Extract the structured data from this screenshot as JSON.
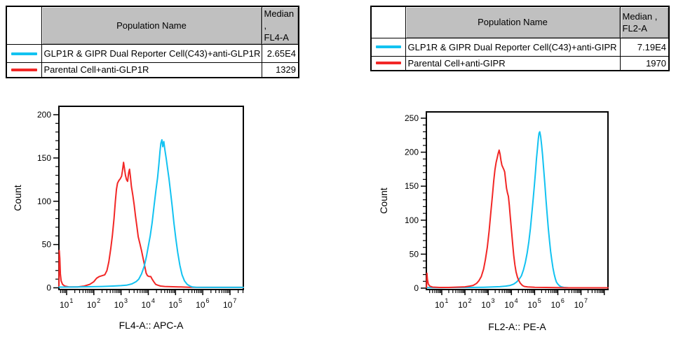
{
  "colors": {
    "cyan": "#12C2F1",
    "red": "#F22726",
    "table_header_bg": "#C0C0C0",
    "axis": "#000000",
    "background": "#FFFFFF"
  },
  "tables": [
    {
      "header": {
        "population": "Population Name",
        "median_line1": "Median ,",
        "median_line2": "FL4-A"
      },
      "rows": [
        {
          "swatch_color": "cyan",
          "name": "GLP1R & GIPR Dual Reporter Cell(C43)+anti-GLP1R",
          "median": "2.65E4"
        },
        {
          "swatch_color": "red",
          "name": "Parental Cell+anti-GLP1R",
          "median": "1329"
        }
      ]
    },
    {
      "header": {
        "population": "Population Name",
        "median_line1": "Median ,",
        "median_line2": "FL2-A"
      },
      "rows": [
        {
          "swatch_color": "cyan",
          "name": "GLP1R & GIPR Dual Reporter Cell(C43)+anti-GIPR",
          "median": "7.19E4"
        },
        {
          "swatch_color": "red",
          "name": "Parental Cell+anti-GIPR",
          "median": "1970"
        }
      ]
    }
  ],
  "chart_data": [
    {
      "type": "line",
      "subtype": "flow-cytometry-histogram",
      "title": "",
      "xlabel": "FL4-A:: APC-A",
      "ylabel": "Count",
      "x_scale": "log10",
      "x_tick_exponents": [
        1,
        2,
        3,
        4,
        5,
        6,
        7
      ],
      "xlim_log10": [
        0.72,
        7.49
      ],
      "ylim": [
        0,
        200
      ],
      "y_ticks": [
        0,
        50,
        100,
        150,
        200
      ],
      "y_minor_step": 10,
      "grid": false,
      "legend_position": "none",
      "series": [
        {
          "name": "GLP1R & GIPR Dual Reporter Cell(C43)+anti-GLP1R",
          "color_key": "cyan",
          "median": "2.65E4",
          "peak": {
            "x_log10": 4.5,
            "count": 171
          },
          "points": [
            [
              0.72,
              0.8
            ],
            [
              1.2,
              0.9
            ],
            [
              1.8,
              1.2
            ],
            [
              2.3,
              1.5
            ],
            [
              2.7,
              2
            ],
            [
              3.0,
              2.5
            ],
            [
              3.2,
              3
            ],
            [
              3.4,
              4.5
            ],
            [
              3.55,
              7
            ],
            [
              3.65,
              10
            ],
            [
              3.75,
              16
            ],
            [
              3.85,
              25
            ],
            [
              3.93,
              36
            ],
            [
              4.0,
              48
            ],
            [
              4.07,
              60
            ],
            [
              4.14,
              75
            ],
            [
              4.21,
              94
            ],
            [
              4.28,
              113
            ],
            [
              4.34,
              127
            ],
            [
              4.39,
              143
            ],
            [
              4.43,
              158
            ],
            [
              4.46,
              167
            ],
            [
              4.5,
              171
            ],
            [
              4.53,
              163
            ],
            [
              4.57,
              169
            ],
            [
              4.61,
              159
            ],
            [
              4.66,
              149
            ],
            [
              4.71,
              137
            ],
            [
              4.76,
              126
            ],
            [
              4.82,
              110
            ],
            [
              4.88,
              93
            ],
            [
              4.94,
              75
            ],
            [
              5.01,
              57
            ],
            [
              5.08,
              41
            ],
            [
              5.16,
              26
            ],
            [
              5.24,
              15
            ],
            [
              5.33,
              8
            ],
            [
              5.43,
              4
            ],
            [
              5.53,
              2
            ],
            [
              5.62,
              1
            ],
            [
              5.75,
              0.6
            ],
            [
              6.5,
              0.5
            ],
            [
              7.49,
              0.5
            ]
          ]
        },
        {
          "name": "Parental Cell+anti-GLP1R",
          "color_key": "red",
          "median": "1329",
          "peak": {
            "x_log10": 3.09,
            "count": 145
          },
          "points": [
            [
              0.72,
              2
            ],
            [
              0.73,
              43
            ],
            [
              0.75,
              34
            ],
            [
              0.77,
              16
            ],
            [
              0.8,
              8
            ],
            [
              0.85,
              4
            ],
            [
              0.93,
              2
            ],
            [
              1.1,
              1
            ],
            [
              1.4,
              1
            ],
            [
              1.65,
              2
            ],
            [
              1.85,
              4
            ],
            [
              2.0,
              7
            ],
            [
              2.1,
              11
            ],
            [
              2.2,
              13
            ],
            [
              2.3,
              14
            ],
            [
              2.4,
              15
            ],
            [
              2.48,
              20
            ],
            [
              2.55,
              30
            ],
            [
              2.62,
              45
            ],
            [
              2.68,
              60
            ],
            [
              2.74,
              80
            ],
            [
              2.79,
              100
            ],
            [
              2.83,
              114
            ],
            [
              2.87,
              121
            ],
            [
              2.92,
              124
            ],
            [
              2.97,
              126
            ],
            [
              3.02,
              129
            ],
            [
              3.05,
              135
            ],
            [
              3.09,
              145
            ],
            [
              3.12,
              139
            ],
            [
              3.16,
              130
            ],
            [
              3.2,
              125
            ],
            [
              3.24,
              123
            ],
            [
              3.28,
              133
            ],
            [
              3.31,
              137
            ],
            [
              3.34,
              129
            ],
            [
              3.38,
              117
            ],
            [
              3.43,
              107
            ],
            [
              3.48,
              96
            ],
            [
              3.53,
              83
            ],
            [
              3.58,
              71
            ],
            [
              3.63,
              59
            ],
            [
              3.69,
              51
            ],
            [
              3.75,
              43
            ],
            [
              3.81,
              34
            ],
            [
              3.87,
              25
            ],
            [
              3.92,
              17
            ],
            [
              3.97,
              14
            ],
            [
              4.03,
              13
            ],
            [
              4.09,
              13
            ],
            [
              4.14,
              10
            ],
            [
              4.2,
              7
            ],
            [
              4.27,
              4
            ],
            [
              4.35,
              3
            ],
            [
              4.45,
              2
            ],
            [
              4.6,
              1.5
            ],
            [
              4.9,
              1.2
            ],
            [
              5.2,
              1
            ],
            [
              5.5,
              0.6
            ],
            [
              6.2,
              0.5
            ],
            [
              7.49,
              0.5
            ]
          ]
        }
      ]
    },
    {
      "type": "line",
      "subtype": "flow-cytometry-histogram",
      "title": "",
      "xlabel": "FL2-A:: PE-A",
      "ylabel": "Count",
      "x_scale": "log10",
      "x_tick_exponents": [
        1,
        2,
        3,
        4,
        5,
        6,
        7
      ],
      "xlim_log10": [
        0.34,
        8.16
      ],
      "ylim": [
        0,
        250
      ],
      "y_ticks": [
        0,
        50,
        100,
        150,
        200,
        250
      ],
      "y_minor_step": 10,
      "grid": false,
      "legend_position": "none",
      "series": [
        {
          "name": "GLP1R & GIPR Dual Reporter Cell(C43)+anti-GIPR",
          "color_key": "cyan",
          "median": "7.19E4",
          "peak": {
            "x_log10": 5.22,
            "count": 230
          },
          "points": [
            [
              0.34,
              0.8
            ],
            [
              1.0,
              0.8
            ],
            [
              1.6,
              1
            ],
            [
              2.2,
              1
            ],
            [
              2.8,
              1.3
            ],
            [
              3.2,
              1.8
            ],
            [
              3.5,
              2.2
            ],
            [
              3.75,
              3
            ],
            [
              3.95,
              4
            ],
            [
              4.1,
              6
            ],
            [
              4.22,
              9
            ],
            [
              4.33,
              13
            ],
            [
              4.43,
              18
            ],
            [
              4.52,
              27
            ],
            [
              4.6,
              38
            ],
            [
              4.68,
              52
            ],
            [
              4.75,
              68
            ],
            [
              4.82,
              88
            ],
            [
              4.88,
              110
            ],
            [
              4.94,
              132
            ],
            [
              4.99,
              152
            ],
            [
              5.04,
              172
            ],
            [
              5.08,
              190
            ],
            [
              5.12,
              205
            ],
            [
              5.16,
              220
            ],
            [
              5.19,
              228
            ],
            [
              5.22,
              230
            ],
            [
              5.26,
              223
            ],
            [
              5.3,
              211
            ],
            [
              5.34,
              196
            ],
            [
              5.39,
              175
            ],
            [
              5.44,
              153
            ],
            [
              5.49,
              130
            ],
            [
              5.54,
              108
            ],
            [
              5.59,
              88
            ],
            [
              5.64,
              70
            ],
            [
              5.69,
              54
            ],
            [
              5.74,
              41
            ],
            [
              5.79,
              30
            ],
            [
              5.84,
              21
            ],
            [
              5.89,
              14
            ],
            [
              5.94,
              9
            ],
            [
              6.0,
              6
            ],
            [
              6.07,
              3.5
            ],
            [
              6.15,
              2
            ],
            [
              6.26,
              1
            ],
            [
              6.45,
              0.6
            ],
            [
              7.2,
              0.5
            ],
            [
              8.16,
              0.5
            ]
          ]
        },
        {
          "name": "Parental Cell+anti-GIPR",
          "color_key": "red",
          "median": "1970",
          "peak": {
            "x_log10": 3.47,
            "count": 203
          },
          "points": [
            [
              0.34,
              1
            ],
            [
              0.36,
              22
            ],
            [
              0.38,
              13
            ],
            [
              0.42,
              6
            ],
            [
              0.48,
              3
            ],
            [
              0.6,
              1.5
            ],
            [
              0.9,
              1
            ],
            [
              1.3,
              1
            ],
            [
              1.7,
              1.5
            ],
            [
              2.0,
              2
            ],
            [
              2.2,
              3
            ],
            [
              2.35,
              4
            ],
            [
              2.5,
              7
            ],
            [
              2.6,
              11
            ],
            [
              2.7,
              17
            ],
            [
              2.8,
              28
            ],
            [
              2.88,
              42
            ],
            [
              2.96,
              60
            ],
            [
              3.04,
              84
            ],
            [
              3.11,
              110
            ],
            [
              3.18,
              136
            ],
            [
              3.24,
              158
            ],
            [
              3.29,
              174
            ],
            [
              3.34,
              185
            ],
            [
              3.39,
              192
            ],
            [
              3.43,
              198
            ],
            [
              3.47,
              203
            ],
            [
              3.51,
              197
            ],
            [
              3.55,
              188
            ],
            [
              3.59,
              181
            ],
            [
              3.64,
              177
            ],
            [
              3.68,
              174
            ],
            [
              3.71,
              171
            ],
            [
              3.75,
              159
            ],
            [
              3.79,
              147
            ],
            [
              3.83,
              140
            ],
            [
              3.87,
              135
            ],
            [
              3.91,
              122
            ],
            [
              3.95,
              106
            ],
            [
              4.0,
              86
            ],
            [
              4.05,
              66
            ],
            [
              4.1,
              48
            ],
            [
              4.15,
              34
            ],
            [
              4.2,
              24
            ],
            [
              4.26,
              16
            ],
            [
              4.32,
              11
            ],
            [
              4.39,
              7
            ],
            [
              4.47,
              4
            ],
            [
              4.56,
              2.5
            ],
            [
              4.7,
              1.8
            ],
            [
              5.0,
              1.2
            ],
            [
              5.5,
              1
            ],
            [
              6.0,
              0.8
            ],
            [
              6.4,
              0.5
            ],
            [
              7.3,
              0.5
            ],
            [
              8.16,
              0.5
            ]
          ]
        }
      ]
    }
  ]
}
